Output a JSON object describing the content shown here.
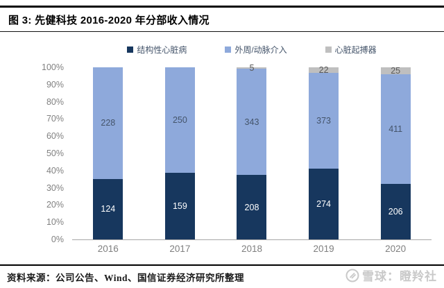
{
  "figure": {
    "title": "图 3:  先健科技 2016-2020 年分部收入情况"
  },
  "chart_data": {
    "type": "bar",
    "stacking": "percent",
    "title": "先健科技 2016-2020 年分部收入情况",
    "categories": [
      "2016",
      "2017",
      "2018",
      "2019",
      "2020"
    ],
    "series": [
      {
        "key": "structural-heart-disease",
        "name": "结构性心脏病",
        "color": "#17375E",
        "label_color": "#FFFFFF",
        "values": [
          124,
          159,
          208,
          274,
          206
        ]
      },
      {
        "key": "peripheral-artery-intervention",
        "name": "外周/动脉介入",
        "color": "#8EA9DB",
        "label_color": "#44546A",
        "values": [
          228,
          250,
          343,
          373,
          411
        ]
      },
      {
        "key": "pacemaker",
        "name": "心脏起搏器",
        "color": "#BFBFBF",
        "label_color": "#595959",
        "values": [
          null,
          null,
          5,
          22,
          25
        ]
      }
    ],
    "y_axis": {
      "ticks": [
        "100%",
        "90%",
        "80%",
        "70%",
        "60%",
        "50%",
        "40%",
        "30%",
        "20%",
        "10%",
        "0%"
      ],
      "min": "0%",
      "max": "100%"
    },
    "grid": false,
    "legend_position": "top"
  },
  "footer": {
    "source": "资料来源：公司公告、Wind、国信证券经济研究所整理"
  },
  "watermark": {
    "text": "雪球：瞪羚社"
  }
}
